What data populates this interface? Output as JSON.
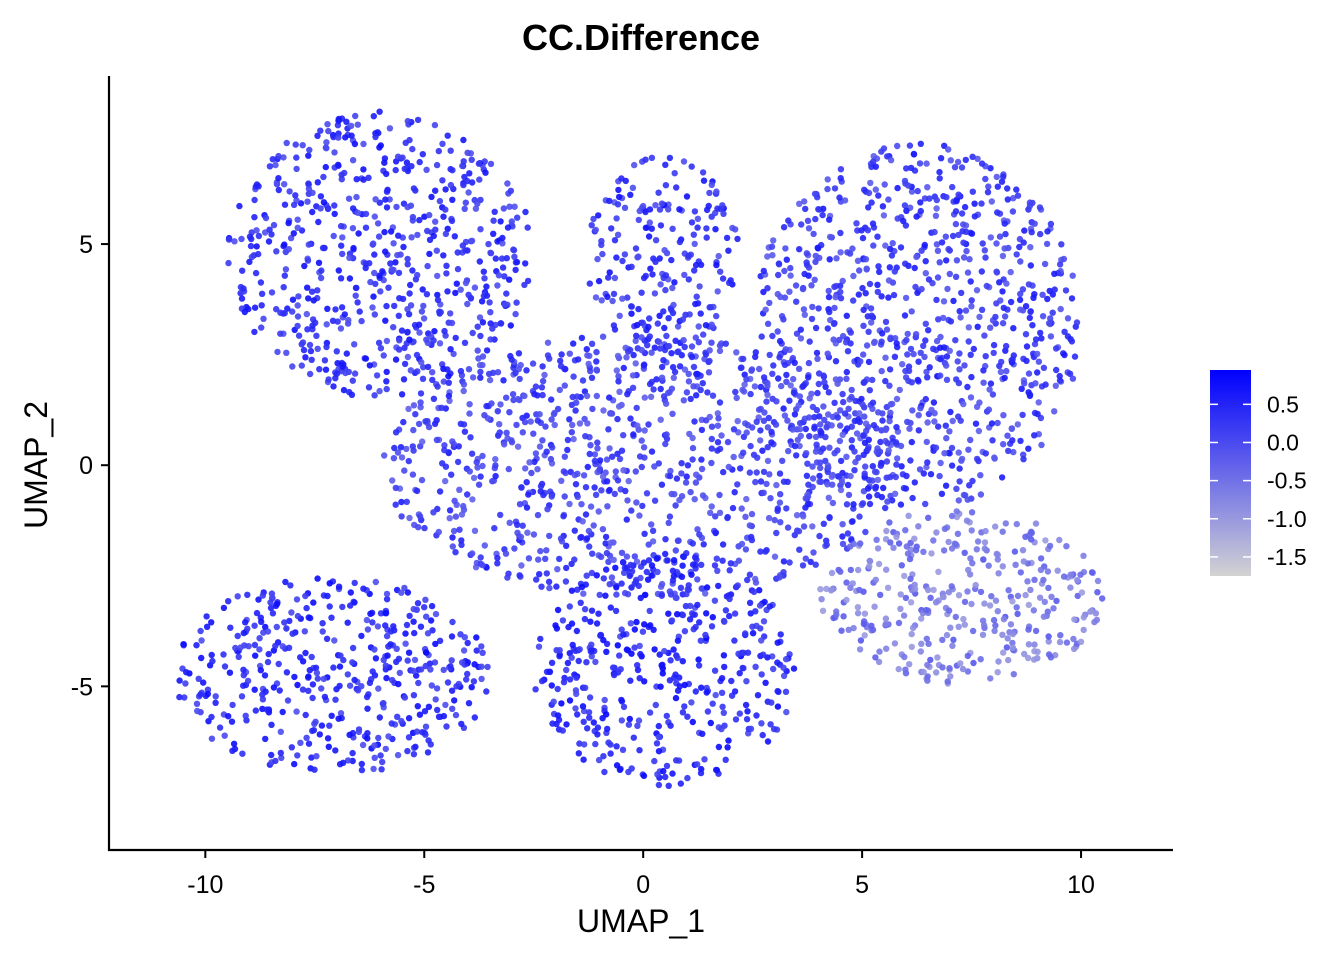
{
  "chart_data": {
    "type": "scatter",
    "title": "CC.Difference",
    "xlabel": "UMAP_1",
    "ylabel": "UMAP_2",
    "xlim": [
      -12.2,
      12.1
    ],
    "ylim": [
      -8.7,
      8.8
    ],
    "x_ticks": [
      -10,
      -5,
      0,
      5,
      10
    ],
    "x_tick_labels": [
      "-10",
      "-5",
      "0",
      "5",
      "10"
    ],
    "y_ticks": [
      -5,
      0,
      5
    ],
    "y_tick_labels": [
      "-5",
      "0",
      "5"
    ],
    "grid": false,
    "color_scale": {
      "variable": "CC.Difference",
      "min": -1.75,
      "max": 0.95,
      "low_color": "#d3d3d3",
      "high_color": "#0000ff",
      "breaks": [
        0.5,
        0.0,
        -0.5,
        -1.0,
        -1.5
      ],
      "break_labels": [
        "0.5",
        "0.0",
        "-0.5",
        "-1.0",
        "-1.5"
      ],
      "legend_position": "right"
    },
    "series": [
      {
        "name": "cells",
        "regions": [
          {
            "name": "upper-left-arm",
            "x_range": [
              -9.5,
              -2.5
            ],
            "y_range": [
              1.5,
              8.0
            ],
            "mean_value": 0.35
          },
          {
            "name": "upper-center-hook",
            "x_range": [
              -1.3,
              2.2
            ],
            "y_range": [
              2.5,
              7.0
            ],
            "mean_value": 0.3
          },
          {
            "name": "upper-right-lobe",
            "x_range": [
              2.5,
              10.0
            ],
            "y_range": [
              -1.0,
              7.3
            ],
            "mean_value": 0.2
          },
          {
            "name": "central-body",
            "x_range": [
              -6.0,
              6.0
            ],
            "y_range": [
              -3.0,
              3.0
            ],
            "mean_value": 0.15
          },
          {
            "name": "lower-left-lobe",
            "x_range": [
              -10.7,
              -3.5
            ],
            "y_range": [
              -7.0,
              -2.5
            ],
            "mean_value": 0.4
          },
          {
            "name": "lower-center",
            "x_range": [
              -2.5,
              3.5
            ],
            "y_range": [
              -7.3,
              -2.0
            ],
            "mean_value": 0.45
          },
          {
            "name": "lower-right-region",
            "x_range": [
              4.0,
              10.5
            ],
            "y_range": [
              -5.0,
              -1.0
            ],
            "mean_value": -0.6
          }
        ]
      }
    ]
  }
}
